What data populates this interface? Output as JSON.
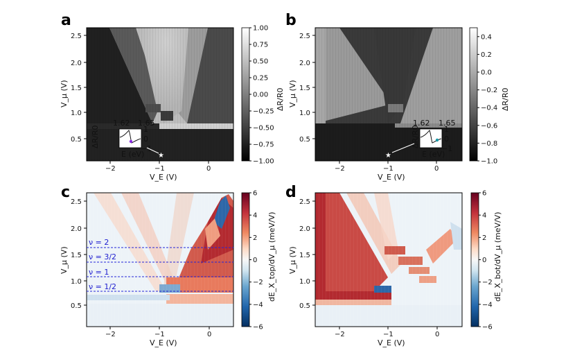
{
  "chart_data": [
    {
      "panel": "a",
      "type": "heatmap",
      "colormap": "gray",
      "xlabel": "V_E (V)",
      "ylabel": "V_μ (V)",
      "xlim": [
        -2.5,
        0.5
      ],
      "ylim": [
        0.1,
        2.65
      ],
      "xticks": [
        -2,
        -1,
        0
      ],
      "yticks": [
        0.5,
        1.0,
        1.5,
        2.0,
        2.5
      ],
      "colorbar": {
        "label": "ΔR/R0",
        "min": -1.0,
        "max": 1.0,
        "ticks": [
          1.0,
          0.75,
          0.5,
          0.25,
          0.0,
          -0.25,
          -0.5,
          -0.75,
          -1.0
        ],
        "tick_labels": [
          "1.00",
          "0.75",
          "0.50",
          "0.25",
          "0.00",
          "−0.25",
          "−0.50",
          "−0.75",
          "−1.00"
        ]
      },
      "marker": {
        "type": "star",
        "x": -1.0,
        "y": 0.2
      },
      "inset": {
        "xlabel": "E (eV)",
        "ylabel": "ΔR/R0",
        "xticks": [
          "1.62",
          "1.65"
        ],
        "yticks": [
          "1",
          "0",
          "−1"
        ],
        "dot_color": "#8a2be2"
      }
    },
    {
      "panel": "b",
      "type": "heatmap",
      "colormap": "gray",
      "xlabel": "V_E (V)",
      "ylabel": "V_μ (V)",
      "xlim": [
        -2.5,
        0.5
      ],
      "ylim": [
        0.1,
        2.65
      ],
      "xticks": [
        -2,
        -1,
        0
      ],
      "yticks": [
        0.5,
        1.0,
        1.5,
        2.0,
        2.5
      ],
      "colorbar": {
        "label": "ΔR/R0",
        "min": -1.0,
        "max": 0.5,
        "ticks": [
          0.4,
          0.2,
          0.0,
          -0.2,
          -0.4,
          -0.6,
          -0.8,
          -1.0
        ],
        "tick_labels": [
          "0.4",
          "0.2",
          "0.0",
          "−0.2",
          "−0.4",
          "−0.6",
          "−0.8",
          "−1.0"
        ]
      },
      "marker": {
        "type": "star",
        "x": -1.0,
        "y": 0.2
      },
      "inset": {
        "xlabel": "E (eV)",
        "ylabel": "ΔR/R0",
        "xticks": [
          "1.62",
          "1.65"
        ],
        "yticks": [
          "1",
          "0",
          "−1"
        ],
        "dot_color": "#1a9aa8"
      }
    },
    {
      "panel": "c",
      "type": "heatmap",
      "colormap": "RdBu_r",
      "xlabel": "V_E (V)",
      "ylabel": "V_μ (V)",
      "xlim": [
        -2.5,
        0.5
      ],
      "ylim": [
        0.1,
        2.75
      ],
      "xticks": [
        -2,
        -1,
        0
      ],
      "yticks": [
        0.5,
        1.0,
        1.5,
        2.0,
        2.5
      ],
      "colorbar": {
        "label": "dE_X_top/dV_μ (meV/V)",
        "min": -6,
        "max": 6,
        "ticks": [
          6,
          4,
          2,
          0,
          -2,
          -4,
          -6
        ],
        "tick_labels": [
          "6",
          "4",
          "2",
          "0",
          "−2",
          "−4",
          "−6"
        ]
      },
      "filling_lines": [
        {
          "label": "ν = 2",
          "y": 1.62
        },
        {
          "label": "ν = 3/2",
          "y": 1.35
        },
        {
          "label": "ν = 1",
          "y": 1.06
        },
        {
          "label": "ν = 1/2",
          "y": 0.78
        }
      ]
    },
    {
      "panel": "d",
      "type": "heatmap",
      "colormap": "RdBu_r",
      "xlabel": "V_E (V)",
      "ylabel": "V_μ (V)",
      "xlim": [
        -2.5,
        0.5
      ],
      "ylim": [
        0.1,
        2.75
      ],
      "xticks": [
        -2,
        -1,
        0
      ],
      "yticks": [
        0.5,
        1.0,
        1.5,
        2.0,
        2.5
      ],
      "colorbar": {
        "label": "dE_X_bot/dV_μ (meV/V)",
        "min": -6,
        "max": 6,
        "ticks": [
          6,
          4,
          2,
          0,
          -2,
          -4,
          -6
        ],
        "tick_labels": [
          "6",
          "4",
          "2",
          "0",
          "−2",
          "−4",
          "−6"
        ]
      }
    }
  ],
  "text": {
    "label_a": "a",
    "label_b": "b",
    "label_c": "c",
    "label_d": "d",
    "tick_m2": "−2",
    "tick_m1": "−1",
    "tick_0": "0",
    "ytick_05": "0.5",
    "ytick_10": "1.0",
    "ytick_15": "1.5",
    "ytick_20": "2.0",
    "ytick_25": "2.5"
  }
}
